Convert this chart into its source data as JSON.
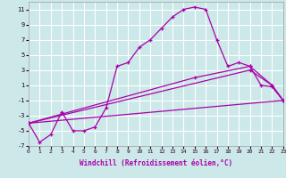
{
  "xlabel": "Windchill (Refroidissement éolien,°C)",
  "xlim": [
    0,
    23
  ],
  "ylim": [
    -7,
    12
  ],
  "yticks": [
    -7,
    -5,
    -3,
    -1,
    1,
    3,
    5,
    7,
    9,
    11
  ],
  "xticks": [
    0,
    1,
    2,
    3,
    4,
    5,
    6,
    7,
    8,
    9,
    10,
    11,
    12,
    13,
    14,
    15,
    16,
    17,
    18,
    19,
    20,
    21,
    22,
    23
  ],
  "bg_color": "#cce8e8",
  "line_color": "#aa00aa",
  "grid_color": "#ffffff",
  "line1_x": [
    0,
    1,
    2,
    3,
    4,
    5,
    6,
    7,
    8,
    9,
    10,
    11,
    12,
    13,
    14,
    15,
    16,
    17,
    18,
    19,
    20,
    21,
    22,
    23
  ],
  "line1_y": [
    -4,
    -6.5,
    -5.5,
    -2.5,
    -5,
    -5,
    -4.5,
    -2,
    3.5,
    4,
    6,
    7,
    8.5,
    10,
    11,
    11.3,
    11,
    7,
    3.5,
    4,
    3.5,
    1,
    0.8,
    -1
  ],
  "line2_x": [
    0,
    23
  ],
  "line2_y": [
    -4,
    -1
  ],
  "line3_x": [
    0,
    20,
    22,
    23
  ],
  "line3_y": [
    -4,
    3,
    1,
    -1
  ],
  "line4_x": [
    0,
    15,
    20,
    22,
    23
  ],
  "line4_y": [
    -4,
    2,
    3.5,
    1,
    -1
  ]
}
